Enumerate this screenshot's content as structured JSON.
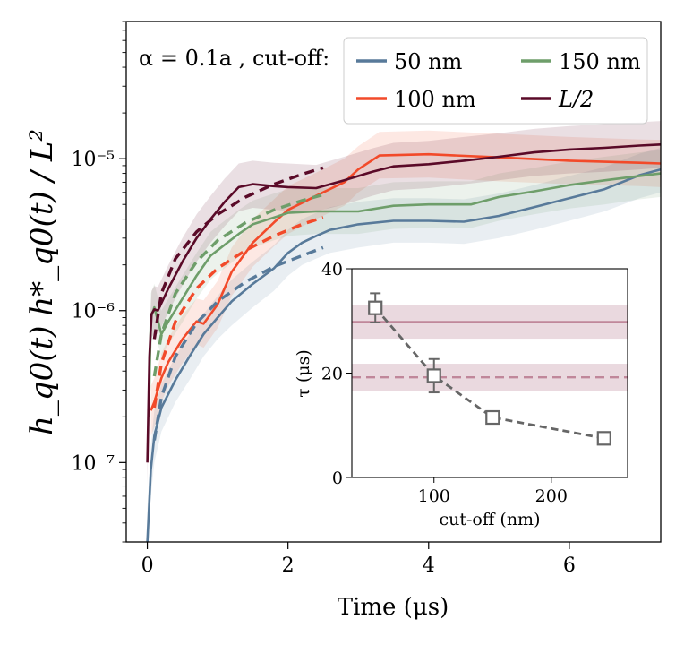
{
  "chart_data": [
    {
      "type": "line",
      "xlabel": "Time (μs)",
      "ylabel": "h_q0(t) h*_q0(t) / L²",
      "yscale": "log",
      "xlim": [
        -0.3,
        7.3
      ],
      "ylim": [
        3e-08,
        8e-05
      ],
      "xticks": [
        0,
        2,
        4,
        6
      ],
      "xtick_labels": [
        "0",
        "2",
        "4",
        "6"
      ],
      "yticks": [
        1e-07,
        1e-06,
        1e-05
      ],
      "ytick_labels": [
        "10⁻⁷",
        "10⁻⁶",
        "10⁻⁵"
      ],
      "annotation": "α = 0.1a , cut-off:",
      "legend_position": "top-right",
      "series": [
        {
          "name": "50 nm",
          "color": "#587a9a",
          "x": [
            0.0,
            0.05,
            0.1,
            0.2,
            0.4,
            0.6,
            0.8,
            1.0,
            1.2,
            1.5,
            1.8,
            2.0,
            2.2,
            2.4,
            2.6,
            3.0,
            3.5,
            4.0,
            4.5,
            5.0,
            5.5,
            6.0,
            6.5,
            7.0,
            7.3
          ],
          "y": [
            3e-08,
            9e-08,
            1.5e-07,
            2.3e-07,
            3.5e-07,
            5e-07,
            7e-07,
            9e-07,
            1.15e-06,
            1.5e-06,
            1.9e-06,
            2.4e-06,
            2.8e-06,
            3.1e-06,
            3.4e-06,
            3.7e-06,
            3.9e-06,
            3.9e-06,
            3.85e-06,
            4.2e-06,
            4.8e-06,
            5.5e-06,
            6.3e-06,
            7.8e-06,
            8.5e-06
          ],
          "band_lower": [
            2e-08,
            6e-08,
            1e-07,
            1.6e-07,
            2.5e-07,
            3.5e-07,
            5e-07,
            6.5e-07,
            8e-07,
            1.05e-06,
            1.35e-06,
            1.7e-06,
            2e-06,
            2.2e-06,
            2.4e-06,
            2.6e-06,
            2.8e-06,
            2.8e-06,
            2.75e-06,
            3e-06,
            3.4e-06,
            3.9e-06,
            4.5e-06,
            5.5e-06,
            6e-06
          ],
          "band_upper": [
            5e-08,
            1.3e-07,
            2.2e-07,
            3.3e-07,
            5e-07,
            7e-07,
            9.5e-07,
            1.25e-06,
            1.6e-06,
            2.1e-06,
            2.7e-06,
            3.4e-06,
            4e-06,
            4.4e-06,
            4.8e-06,
            5.2e-06,
            5.5e-06,
            5.5e-06,
            5.4e-06,
            5.9e-06,
            6.7e-06,
            7.7e-06,
            8.8e-06,
            1.08e-05,
            1.18e-05
          ]
        },
        {
          "name": "100 nm",
          "color": "#f24a2a",
          "x": [
            0.05,
            0.1,
            0.15,
            0.2,
            0.3,
            0.5,
            0.7,
            0.8,
            1.0,
            1.2,
            1.5,
            1.8,
            2.0,
            2.4,
            2.8,
            3.0,
            3.3,
            4.0,
            5.0,
            6.0,
            7.0,
            7.3
          ],
          "y": [
            2.2e-07,
            2.5e-07,
            3e-07,
            3.6e-07,
            4.6e-07,
            6.5e-07,
            8.5e-07,
            8.2e-07,
            1.1e-06,
            1.8e-06,
            2.8e-06,
            3.8e-06,
            4.6e-06,
            5.7e-06,
            7e-06,
            8.5e-06,
            1.05e-05,
            1.07e-05,
            1.02e-05,
            9.7e-06,
            9.4e-06,
            9.3e-06
          ],
          "band_lower": [
            1.5e-07,
            1.7e-07,
            2e-07,
            2.5e-07,
            3.2e-07,
            4.5e-07,
            6e-07,
            5.7e-07,
            7.7e-07,
            1.25e-06,
            1.95e-06,
            2.65e-06,
            3.2e-06,
            4e-06,
            4.9e-06,
            6e-06,
            7.4e-06,
            7.5e-06,
            7.1e-06,
            6.8e-06,
            6.6e-06,
            6.5e-06
          ],
          "band_upper": [
            3.2e-07,
            3.6e-07,
            4.3e-07,
            5.2e-07,
            6.6e-07,
            9.3e-07,
            1.2e-06,
            1.17e-06,
            1.57e-06,
            2.6e-06,
            4e-06,
            5.4e-06,
            6.6e-06,
            8.1e-06,
            1e-05,
            1.21e-05,
            1.5e-05,
            1.53e-05,
            1.46e-05,
            1.39e-05,
            1.34e-05,
            1.33e-05
          ]
        },
        {
          "name": "150 nm",
          "color": "#6e9e6a",
          "x": [
            0.02,
            0.05,
            0.1,
            0.2,
            0.3,
            0.5,
            0.7,
            0.9,
            1.0,
            1.3,
            1.5,
            1.8,
            2.0,
            2.4,
            3.0,
            3.5,
            4.0,
            4.6,
            5.0,
            5.5,
            6.0,
            6.5,
            7.0,
            7.3
          ],
          "y": [
            2e-07,
            9e-07,
            1.05e-06,
            7e-07,
            8.5e-07,
            1.2e-06,
            1.7e-06,
            2.3e-06,
            2.5e-06,
            3.2e-06,
            3.7e-06,
            4.1e-06,
            4.4e-06,
            4.5e-06,
            4.5e-06,
            4.9e-06,
            5e-06,
            5e-06,
            5.6e-06,
            6.1e-06,
            6.7e-06,
            7.2e-06,
            7.7e-06,
            8e-06
          ],
          "band_lower": [
            1.3e-07,
            6.3e-07,
            7.4e-07,
            4.9e-07,
            6e-07,
            8.4e-07,
            1.2e-06,
            1.6e-06,
            1.75e-06,
            2.25e-06,
            2.6e-06,
            2.9e-06,
            3.1e-06,
            3.2e-06,
            3.2e-06,
            3.45e-06,
            3.5e-06,
            3.5e-06,
            3.9e-06,
            4.3e-06,
            4.7e-06,
            5e-06,
            5.4e-06,
            5.6e-06
          ],
          "band_upper": [
            2.8e-07,
            1.3e-06,
            1.5e-06,
            1e-06,
            1.2e-06,
            1.7e-06,
            2.4e-06,
            3.3e-06,
            3.6e-06,
            4.6e-06,
            5.3e-06,
            5.9e-06,
            6.3e-06,
            6.4e-06,
            6.4e-06,
            7e-06,
            7.1e-06,
            7.1e-06,
            8e-06,
            8.7e-06,
            9.6e-06,
            1.03e-05,
            1.1e-05,
            1.14e-05
          ]
        },
        {
          "name": "L/2",
          "color": "#5a0a28",
          "x": [
            0.0,
            0.03,
            0.06,
            0.1,
            0.15,
            0.3,
            0.5,
            0.7,
            0.9,
            1.1,
            1.3,
            1.5,
            1.8,
            2.0,
            2.4,
            2.8,
            3.2,
            3.5,
            4.0,
            4.5,
            5.0,
            5.5,
            6.0,
            6.5,
            7.0,
            7.3
          ],
          "y": [
            1e-07,
            5e-07,
            9.5e-07,
            1.02e-06,
            1e-06,
            1.4e-06,
            2.1e-06,
            3e-06,
            4e-06,
            5.2e-06,
            6.5e-06,
            6.8e-06,
            6.6e-06,
            6.5e-06,
            6.4e-06,
            7.2e-06,
            8.2e-06,
            8.9e-06,
            9.2e-06,
            9.7e-06,
            1.03e-05,
            1.1e-05,
            1.15e-05,
            1.18e-05,
            1.22e-05,
            1.24e-05
          ],
          "band_lower": [
            7e-08,
            3.5e-07,
            6.6e-07,
            7.1e-07,
            7e-07,
            9.8e-07,
            1.47e-06,
            2.1e-06,
            2.8e-06,
            3.6e-06,
            4.5e-06,
            4.75e-06,
            4.6e-06,
            4.55e-06,
            4.5e-06,
            5e-06,
            5.7e-06,
            6.2e-06,
            6.4e-06,
            6.8e-06,
            7.2e-06,
            7.7e-06,
            8e-06,
            8.2e-06,
            8.5e-06,
            8.7e-06
          ],
          "band_upper": [
            1.4e-07,
            7e-07,
            1.35e-06,
            1.45e-06,
            1.43e-06,
            2e-06,
            3e-06,
            4.3e-06,
            5.7e-06,
            7.4e-06,
            9.3e-06,
            9.7e-06,
            9.4e-06,
            9.3e-06,
            9.1e-06,
            1.03e-05,
            1.17e-05,
            1.27e-05,
            1.31e-05,
            1.39e-05,
            1.47e-05,
            1.57e-05,
            1.64e-05,
            1.69e-05,
            1.74e-05,
            1.77e-05
          ]
        }
      ],
      "fits": [
        {
          "series": "50 nm",
          "style": "dashed",
          "color": "#587a9a",
          "x": [
            0.1,
            0.2,
            0.4,
            0.7,
            1.0,
            1.4,
            1.8,
            2.2,
            2.5
          ],
          "y": [
            1.4e-07,
            2.7e-07,
            5e-07,
            8.3e-07,
            1.15e-06,
            1.55e-06,
            1.95e-06,
            2.3e-06,
            2.6e-06
          ]
        },
        {
          "series": "100 nm",
          "style": "dashed",
          "color": "#f24a2a",
          "x": [
            0.1,
            0.2,
            0.4,
            0.7,
            1.0,
            1.4,
            1.8,
            2.2,
            2.5
          ],
          "y": [
            2.3e-07,
            4.5e-07,
            8.5e-07,
            1.4e-06,
            1.9e-06,
            2.5e-06,
            3.1e-06,
            3.7e-06,
            4.1e-06
          ]
        },
        {
          "series": "150 nm",
          "style": "dashed",
          "color": "#6e9e6a",
          "x": [
            0.1,
            0.2,
            0.4,
            0.7,
            1.0,
            1.4,
            1.8,
            2.2,
            2.5
          ],
          "y": [
            3.7e-07,
            7e-07,
            1.3e-06,
            2.1e-06,
            2.9e-06,
            3.8e-06,
            4.6e-06,
            5.3e-06,
            5.8e-06
          ]
        },
        {
          "series": "L/2",
          "style": "dashed",
          "color": "#5a0a28",
          "x": [
            0.1,
            0.2,
            0.4,
            0.7,
            1.0,
            1.4,
            1.8,
            2.2,
            2.5
          ],
          "y": [
            6.5e-07,
            1.3e-06,
            2.2e-06,
            3.3e-06,
            4.3e-06,
            5.6e-06,
            6.8e-06,
            7.9e-06,
            8.7e-06
          ]
        }
      ]
    },
    {
      "type": "scatter",
      "subtype": "inset",
      "xlabel": "cut-off (nm)",
      "ylabel": "τ (μs)",
      "xlim": [
        30,
        265
      ],
      "ylim": [
        0,
        40
      ],
      "xticks": [
        100,
        200
      ],
      "xtick_labels": [
        "100",
        "200"
      ],
      "yticks": [
        0,
        20,
        40
      ],
      "ytick_labels": [
        "0",
        "20",
        "40"
      ],
      "points": {
        "x": [
          50,
          100,
          150,
          245
        ],
        "y": [
          32.5,
          19.5,
          11.5,
          7.5
        ],
        "yerr": [
          2.8,
          3.2,
          0.9,
          0.6
        ]
      },
      "points_color": "#666666",
      "hlines": [
        {
          "y": 29.8,
          "style": "solid",
          "band": [
            26.6,
            33.0
          ],
          "color": "#c0879a"
        },
        {
          "y": 19.2,
          "style": "dashed",
          "band": [
            16.6,
            21.8
          ],
          "color": "#c0879a"
        }
      ]
    }
  ]
}
